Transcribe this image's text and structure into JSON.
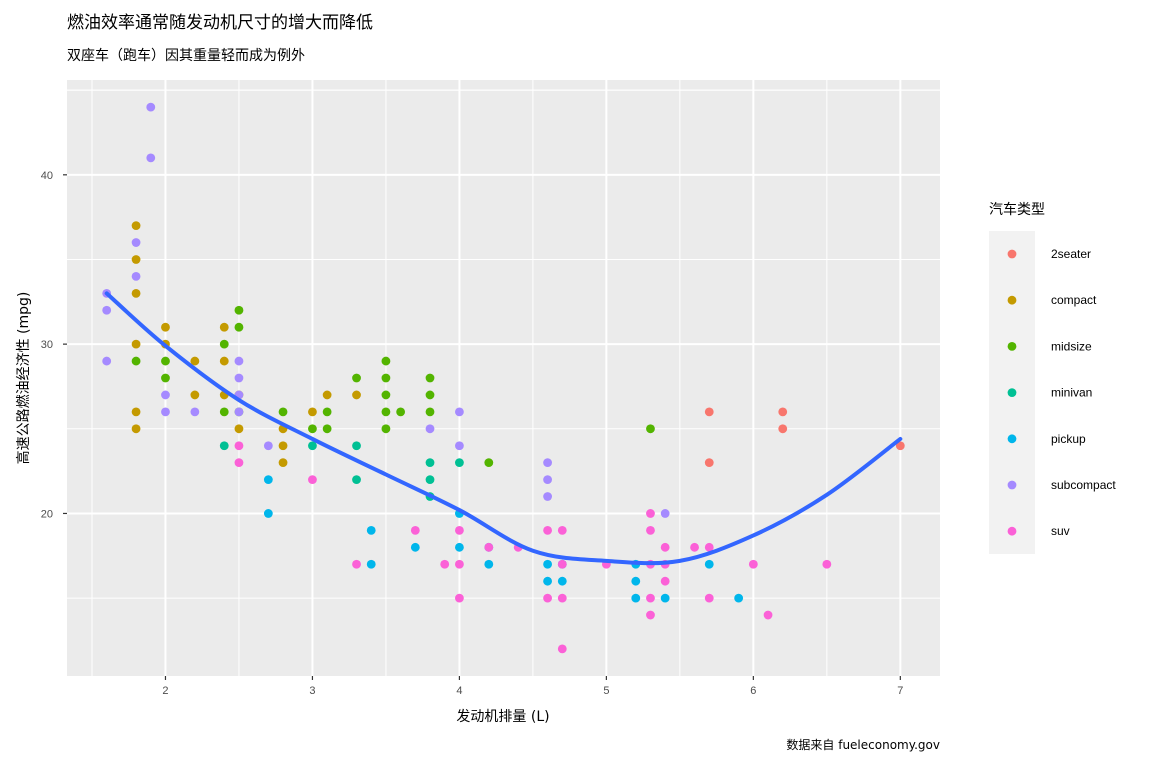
{
  "chart_data": {
    "type": "scatter",
    "title": "燃油效率通常随发动机尺寸的增大而降低",
    "subtitle": "双座车（跑车）因其重量轻而成为例外",
    "xlabel": "发动机排量 (L)",
    "ylabel": "高速公路燃油经济性 (mpg)",
    "caption": "数据来自 fueleconomy.gov",
    "xlim": [
      1.33,
      7.27
    ],
    "ylim": [
      10.4,
      45.6
    ],
    "x_ticks": [
      2,
      3,
      4,
      5,
      6,
      7
    ],
    "y_ticks": [
      20,
      30,
      40
    ],
    "grid": true,
    "legend": {
      "title": "汽车类型",
      "position": "right",
      "entries": [
        {
          "label": "2seater",
          "color": "#F8766D"
        },
        {
          "label": "compact",
          "color": "#C49A00"
        },
        {
          "label": "midsize",
          "color": "#53B400"
        },
        {
          "label": "minivan",
          "color": "#00C094"
        },
        {
          "label": "pickup",
          "color": "#00B6EB"
        },
        {
          "label": "subcompact",
          "color": "#A58AFF"
        },
        {
          "label": "suv",
          "color": "#FB61D7"
        }
      ]
    },
    "series": [
      {
        "name": "2seater",
        "color": "#F8766D",
        "points": [
          [
            5.7,
            26
          ],
          [
            5.7,
            23
          ],
          [
            6.2,
            26
          ],
          [
            6.2,
            25
          ],
          [
            7.0,
            24
          ]
        ]
      },
      {
        "name": "compact",
        "color": "#C49A00",
        "points": [
          [
            1.8,
            37
          ],
          [
            1.8,
            35
          ],
          [
            1.8,
            33
          ],
          [
            1.8,
            30
          ],
          [
            1.8,
            26
          ],
          [
            1.8,
            25
          ],
          [
            2.0,
            31
          ],
          [
            2.0,
            30
          ],
          [
            2.2,
            29
          ],
          [
            2.2,
            27
          ],
          [
            2.4,
            31
          ],
          [
            2.4,
            29
          ],
          [
            2.4,
            27
          ],
          [
            2.5,
            27
          ],
          [
            2.5,
            25
          ],
          [
            2.8,
            25
          ],
          [
            2.8,
            24
          ],
          [
            2.8,
            23
          ],
          [
            3.0,
            26
          ],
          [
            3.1,
            27
          ],
          [
            3.3,
            27
          ]
        ]
      },
      {
        "name": "midsize",
        "color": "#53B400",
        "points": [
          [
            1.8,
            29
          ],
          [
            2.0,
            29
          ],
          [
            2.0,
            28
          ],
          [
            2.4,
            30
          ],
          [
            2.4,
            26
          ],
          [
            2.5,
            32
          ],
          [
            2.5,
            31
          ],
          [
            2.5,
            26
          ],
          [
            2.8,
            26
          ],
          [
            3.0,
            25
          ],
          [
            3.1,
            26
          ],
          [
            3.1,
            25
          ],
          [
            3.3,
            28
          ],
          [
            3.5,
            29
          ],
          [
            3.5,
            28
          ],
          [
            3.5,
            27
          ],
          [
            3.5,
            26
          ],
          [
            3.5,
            25
          ],
          [
            3.6,
            26
          ],
          [
            3.8,
            28
          ],
          [
            3.8,
            27
          ],
          [
            3.8,
            26
          ],
          [
            4.2,
            23
          ],
          [
            5.3,
            25
          ]
        ]
      },
      {
        "name": "minivan",
        "color": "#00C094",
        "points": [
          [
            2.4,
            24
          ],
          [
            3.0,
            24
          ],
          [
            3.3,
            24
          ],
          [
            3.3,
            22
          ],
          [
            3.8,
            23
          ],
          [
            3.8,
            22
          ],
          [
            3.8,
            21
          ],
          [
            4.0,
            23
          ]
        ]
      },
      {
        "name": "pickup",
        "color": "#00B6EB",
        "points": [
          [
            2.7,
            22
          ],
          [
            2.7,
            20
          ],
          [
            3.4,
            19
          ],
          [
            3.4,
            17
          ],
          [
            3.7,
            18
          ],
          [
            4.0,
            20
          ],
          [
            4.0,
            18
          ],
          [
            4.2,
            18
          ],
          [
            4.2,
            17
          ],
          [
            4.6,
            17
          ],
          [
            4.6,
            16
          ],
          [
            4.7,
            16
          ],
          [
            4.7,
            17
          ],
          [
            5.2,
            17
          ],
          [
            5.2,
            16
          ],
          [
            5.2,
            15
          ],
          [
            5.4,
            15
          ],
          [
            5.7,
            17
          ],
          [
            5.9,
            15
          ]
        ]
      },
      {
        "name": "subcompact",
        "color": "#A58AFF",
        "points": [
          [
            1.6,
            33
          ],
          [
            1.6,
            32
          ],
          [
            1.6,
            29
          ],
          [
            1.8,
            36
          ],
          [
            1.8,
            34
          ],
          [
            1.9,
            44
          ],
          [
            1.9,
            41
          ],
          [
            2.0,
            27
          ],
          [
            2.0,
            26
          ],
          [
            2.2,
            26
          ],
          [
            2.5,
            29
          ],
          [
            2.5,
            28
          ],
          [
            2.5,
            27
          ],
          [
            2.5,
            26
          ],
          [
            2.7,
            24
          ],
          [
            3.8,
            25
          ],
          [
            4.0,
            26
          ],
          [
            4.0,
            24
          ],
          [
            4.6,
            23
          ],
          [
            4.6,
            22
          ],
          [
            4.6,
            21
          ],
          [
            5.4,
            20
          ]
        ]
      },
      {
        "name": "suv",
        "color": "#FB61D7",
        "points": [
          [
            2.5,
            24
          ],
          [
            2.5,
            23
          ],
          [
            3.0,
            22
          ],
          [
            3.3,
            17
          ],
          [
            3.7,
            19
          ],
          [
            3.9,
            17
          ],
          [
            4.0,
            19
          ],
          [
            4.0,
            17
          ],
          [
            4.0,
            15
          ],
          [
            4.2,
            18
          ],
          [
            4.4,
            18
          ],
          [
            4.6,
            19
          ],
          [
            4.6,
            15
          ],
          [
            4.7,
            19
          ],
          [
            4.7,
            17
          ],
          [
            4.7,
            15
          ],
          [
            4.7,
            12
          ],
          [
            5.0,
            17
          ],
          [
            5.3,
            20
          ],
          [
            5.3,
            19
          ],
          [
            5.3,
            17
          ],
          [
            5.3,
            15
          ],
          [
            5.3,
            14
          ],
          [
            5.4,
            18
          ],
          [
            5.4,
            17
          ],
          [
            5.4,
            16
          ],
          [
            5.6,
            18
          ],
          [
            5.7,
            18
          ],
          [
            5.7,
            15
          ],
          [
            6.0,
            17
          ],
          [
            6.1,
            14
          ],
          [
            6.5,
            17
          ]
        ]
      }
    ],
    "smooth": {
      "method": "loess",
      "color": "#3366FF",
      "x": [
        1.6,
        2.0,
        2.5,
        3.0,
        3.5,
        4.0,
        4.5,
        5.0,
        5.5,
        6.0,
        6.5,
        7.0
      ],
      "y": [
        33.0,
        29.9,
        26.7,
        24.4,
        22.3,
        20.2,
        17.8,
        17.2,
        17.2,
        18.7,
        21.1,
        24.4
      ]
    }
  }
}
